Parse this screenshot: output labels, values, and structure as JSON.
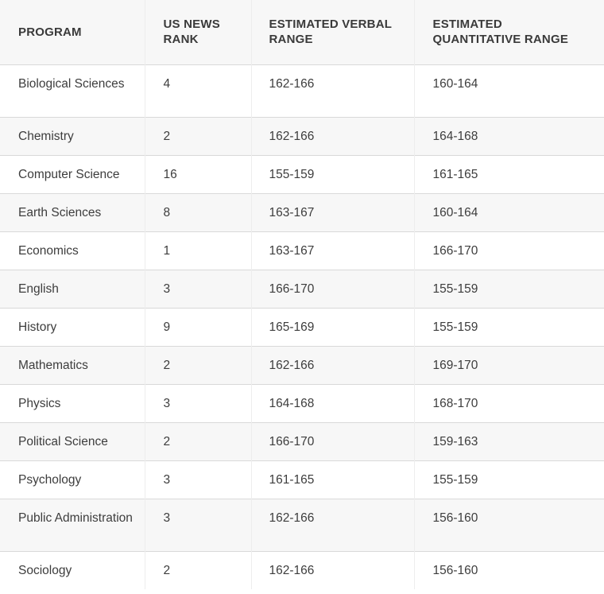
{
  "table": {
    "headers": [
      "PROGRAM",
      "US NEWS RANK",
      "ESTIMATED VERBAL RANGE",
      "ESTIMATED QUANTITATIVE RANGE"
    ],
    "rows": [
      [
        "Biological Sciences",
        "4",
        "162-166",
        "160-164"
      ],
      [
        "Chemistry",
        "2",
        "162-166",
        "164-168"
      ],
      [
        "Computer Science",
        "16",
        "155-159",
        "161-165"
      ],
      [
        "Earth Sciences",
        "8",
        "163-167",
        "160-164"
      ],
      [
        "Economics",
        "1",
        "163-167",
        "166-170"
      ],
      [
        "English",
        "3",
        "166-170",
        "155-159"
      ],
      [
        "History",
        "9",
        "165-169",
        "155-159"
      ],
      [
        "Mathematics",
        "2",
        "162-166",
        "169-170"
      ],
      [
        "Physics",
        "3",
        "164-168",
        "168-170"
      ],
      [
        "Political Science",
        "2",
        "166-170",
        "159-163"
      ],
      [
        "Psychology",
        "3",
        "161-165",
        "155-159"
      ],
      [
        "Public Administration",
        "3",
        "162-166",
        "156-160"
      ],
      [
        "Sociology",
        "2",
        "162-166",
        "156-160"
      ]
    ]
  }
}
